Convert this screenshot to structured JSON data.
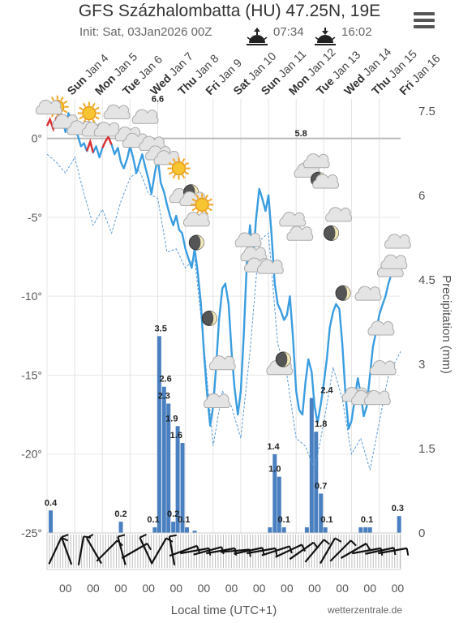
{
  "header": {
    "title": "GFS Százhalombatta (HU) 47.25N, 19E",
    "init": "Init: Sat, 03Jan2026 00Z",
    "sunrise": "07:34",
    "sunset": "16:02"
  },
  "chart_data": {
    "type": "line",
    "days": [
      {
        "dow": "Sun",
        "date": "Jan 4"
      },
      {
        "dow": "Mon",
        "date": "Jan 5"
      },
      {
        "dow": "Tue",
        "date": "Jan 6"
      },
      {
        "dow": "Wed",
        "date": "Jan 7"
      },
      {
        "dow": "Thu",
        "date": "Jan 8"
      },
      {
        "dow": "Fri",
        "date": "Jan 9"
      },
      {
        "dow": "Sat",
        "date": "Jan 10"
      },
      {
        "dow": "Sun",
        "date": "Jan 11"
      },
      {
        "dow": "Mon",
        "date": "Jan 12"
      },
      {
        "dow": "Tue",
        "date": "Jan 13"
      },
      {
        "dow": "Wed",
        "date": "Jan 14"
      },
      {
        "dow": "Thu",
        "date": "Jan 15"
      },
      {
        "dow": "Fri",
        "date": "Jan 16"
      }
    ],
    "y_left": {
      "ticks": [
        0,
        -5,
        -10,
        -15,
        -20,
        -25
      ],
      "labels": [
        "0°",
        "-5°",
        "-10°",
        "-15°",
        "-20°",
        "-25°"
      ],
      "range": [
        -25,
        2.5
      ]
    },
    "y_right": {
      "ticks": [
        0,
        1.5,
        3,
        4.5,
        6,
        7.5
      ],
      "labels": [
        "0",
        "1.5",
        "3",
        "4.5",
        "6",
        "7.5"
      ],
      "range": [
        0,
        7.5
      ],
      "label": "Precipitation (mm)"
    },
    "xlabel": "Local time (UTC+1)",
    "hour_label": "00",
    "credit": "wetterzentrale.de",
    "temperature": [
      [
        0,
        0.8
      ],
      [
        0.08,
        1.2
      ],
      [
        0.17,
        0.6
      ],
      [
        0.25,
        1.3
      ],
      [
        0.33,
        1.5
      ],
      [
        0.42,
        1.2
      ],
      [
        0.5,
        0.4
      ],
      [
        0.58,
        1.6
      ],
      [
        0.66,
        1.2
      ],
      [
        0.75,
        0.6
      ],
      [
        0.83,
        0.2
      ],
      [
        0.92,
        -0.5
      ],
      [
        1.0,
        -0.3
      ],
      [
        1.08,
        -0.8
      ],
      [
        1.17,
        -0.2
      ],
      [
        1.25,
        -0.9
      ],
      [
        1.33,
        -0.5
      ],
      [
        1.42,
        -1.2
      ],
      [
        1.5,
        -0.6
      ],
      [
        1.58,
        -0.2
      ],
      [
        1.66,
        0.1
      ],
      [
        1.75,
        -0.4
      ],
      [
        1.83,
        -1.0
      ],
      [
        1.92,
        -0.6
      ],
      [
        2.0,
        -1.5
      ],
      [
        2.08,
        -1.9
      ],
      [
        2.17,
        -1.3
      ],
      [
        2.25,
        -0.5
      ],
      [
        2.33,
        -1.2
      ],
      [
        2.42,
        -2.2
      ],
      [
        2.5,
        -1.6
      ],
      [
        2.58,
        -1.0
      ],
      [
        2.66,
        -1.8
      ],
      [
        2.75,
        -2.6
      ],
      [
        2.83,
        -3.5
      ],
      [
        2.92,
        -2.2
      ],
      [
        3.0,
        -1.2
      ],
      [
        3.08,
        -2.8
      ],
      [
        3.17,
        -3.4
      ],
      [
        3.25,
        -4.2
      ],
      [
        3.33,
        -4.9
      ],
      [
        3.42,
        -5.5
      ],
      [
        3.5,
        -4.9
      ],
      [
        3.58,
        -5.8
      ],
      [
        3.66,
        -6.0
      ],
      [
        3.75,
        -7.0
      ],
      [
        3.83,
        -7.6
      ],
      [
        3.92,
        -8.2
      ],
      [
        4.0,
        -7.0
      ],
      [
        4.08,
        -8.4
      ],
      [
        4.17,
        -10.5
      ],
      [
        4.25,
        -13.5
      ],
      [
        4.33,
        -16.0
      ],
      [
        4.42,
        -18.2
      ],
      [
        4.5,
        -17.0
      ],
      [
        4.58,
        -14.5
      ],
      [
        4.66,
        -11.5
      ],
      [
        4.75,
        -9.5
      ],
      [
        4.83,
        -9.2
      ],
      [
        4.92,
        -10.5
      ],
      [
        5.0,
        -13.5
      ],
      [
        5.08,
        -15.8
      ],
      [
        5.17,
        -17.5
      ],
      [
        5.25,
        -16.0
      ],
      [
        5.33,
        -12.5
      ],
      [
        5.42,
        -7.5
      ],
      [
        5.5,
        -5.5
      ],
      [
        5.58,
        -7.8
      ],
      [
        5.66,
        -5.2
      ],
      [
        5.75,
        -3.2
      ],
      [
        5.83,
        -3.8
      ],
      [
        5.92,
        -4.6
      ],
      [
        6.0,
        -3.6
      ],
      [
        6.08,
        -6.0
      ],
      [
        6.17,
        -9.2
      ],
      [
        6.25,
        -10.5
      ],
      [
        6.33,
        -10.9
      ],
      [
        6.42,
        -11.5
      ],
      [
        6.5,
        -11.2
      ],
      [
        6.58,
        -10.0
      ],
      [
        6.66,
        -12.5
      ],
      [
        6.75,
        -16.0
      ],
      [
        6.83,
        -17.2
      ],
      [
        6.92,
        -17.5
      ],
      [
        7.0,
        -15.5
      ],
      [
        7.08,
        -14.0
      ],
      [
        7.17,
        -14.8
      ],
      [
        7.25,
        -17.0
      ],
      [
        7.33,
        -18.0
      ],
      [
        7.42,
        -16.8
      ],
      [
        7.5,
        -15.5
      ],
      [
        7.58,
        -14.0
      ],
      [
        7.66,
        -12.0
      ],
      [
        7.75,
        -11.0
      ],
      [
        7.83,
        -10.5
      ],
      [
        7.92,
        -10.8
      ],
      [
        8.0,
        -13.0
      ],
      [
        8.08,
        -16.0
      ],
      [
        8.17,
        -18.4
      ],
      [
        8.25,
        -17.9
      ],
      [
        8.33,
        -16.6
      ],
      [
        8.42,
        -15.2
      ],
      [
        8.5,
        -16.2
      ],
      [
        8.58,
        -17.6
      ],
      [
        8.66,
        -17.0
      ],
      [
        8.75,
        -15.0
      ],
      [
        8.83,
        -13.2
      ],
      [
        8.92,
        -12.2
      ],
      [
        9.0,
        -11.2
      ],
      [
        9.08,
        -10.6
      ],
      [
        9.17,
        -10.0
      ],
      [
        9.25,
        -9.2
      ],
      [
        9.33,
        -8.6
      ],
      [
        9.42,
        -8.0
      ],
      [
        9.5,
        -8.4
      ],
      [
        9.58,
        -8.2
      ]
    ],
    "dew_point": [
      [
        0,
        -1.0
      ],
      [
        0.25,
        -1.5
      ],
      [
        0.5,
        -2.2
      ],
      [
        0.75,
        -1.2
      ],
      [
        1.0,
        -3.5
      ],
      [
        1.25,
        -5.5
      ],
      [
        1.5,
        -4.5
      ],
      [
        1.75,
        -6.0
      ],
      [
        2.0,
        -4.0
      ],
      [
        2.25,
        -2.5
      ],
      [
        2.5,
        -2.0
      ],
      [
        2.75,
        -3.5
      ],
      [
        3.0,
        -3.8
      ],
      [
        3.25,
        -7.2
      ],
      [
        3.5,
        -7.0
      ],
      [
        3.75,
        -8.2
      ],
      [
        4.0,
        -7.6
      ],
      [
        4.25,
        -13.0
      ],
      [
        4.5,
        -19.5
      ],
      [
        4.75,
        -16.0
      ],
      [
        5.0,
        -17.0
      ],
      [
        5.25,
        -19.0
      ],
      [
        5.5,
        -13.5
      ],
      [
        5.75,
        -6.5
      ],
      [
        6.0,
        -6.0
      ],
      [
        6.25,
        -13.0
      ],
      [
        6.5,
        -15.0
      ],
      [
        6.75,
        -19.0
      ],
      [
        7.0,
        -19.5
      ],
      [
        7.25,
        -21.0
      ],
      [
        7.5,
        -18.0
      ],
      [
        7.75,
        -14.5
      ],
      [
        8.0,
        -16.5
      ],
      [
        8.25,
        -20.0
      ],
      [
        8.5,
        -19.0
      ],
      [
        8.75,
        -21.0
      ],
      [
        9.0,
        -18.0
      ],
      [
        9.25,
        -15.0
      ],
      [
        9.58,
        -13.5
      ]
    ],
    "warm_segments": [
      [
        [
          0,
          0.8
        ],
        [
          0.08,
          1.2
        ],
        [
          0.17,
          0.6
        ],
        [
          0.25,
          1.3
        ],
        [
          0.33,
          1.5
        ]
      ],
      [
        [
          1.08,
          -0.8
        ],
        [
          1.17,
          -0.2
        ],
        [
          1.25,
          -0.9
        ]
      ],
      [
        [
          1.5,
          -0.6
        ],
        [
          1.58,
          -0.2
        ],
        [
          1.66,
          0.1
        ],
        [
          1.75,
          -0.4
        ]
      ]
    ],
    "precipitation": [
      [
        0.1,
        0.4
      ],
      [
        2.0,
        0.2
      ],
      [
        2.92,
        0.1
      ],
      [
        3.04,
        3.5
      ],
      [
        3.17,
        2.6
      ],
      [
        3.29,
        2.3
      ],
      [
        3.42,
        0.2
      ],
      [
        3.54,
        1.9
      ],
      [
        3.67,
        1.6
      ],
      [
        3.79,
        0.1
      ],
      [
        4.0,
        0.04
      ],
      [
        6.04,
        0.1
      ],
      [
        6.17,
        1.4
      ],
      [
        6.29,
        1.0
      ],
      [
        6.42,
        0.1
      ],
      [
        7.04,
        0.1
      ],
      [
        7.17,
        2.4
      ],
      [
        7.29,
        1.8
      ],
      [
        7.42,
        0.7
      ],
      [
        7.54,
        0.1
      ],
      [
        8.5,
        0.1
      ],
      [
        8.63,
        0.1
      ],
      [
        8.75,
        0.1
      ],
      [
        9.54,
        0.3
      ]
    ],
    "precip_labels": [
      {
        "x": 0.1,
        "v": 0.4,
        "t": "0.4"
      },
      {
        "x": 2.0,
        "v": 0.2,
        "t": "0.2"
      },
      {
        "x": 2.88,
        "v": 0.1,
        "t": "0.1"
      },
      {
        "x": 3.08,
        "v": 3.5,
        "t": "3.5"
      },
      {
        "x": 3.21,
        "v": 2.6,
        "t": "2.6"
      },
      {
        "x": 3.17,
        "v": 2.3,
        "t": "2.3"
      },
      {
        "x": 3.42,
        "v": 0.2,
        "t": "0.2"
      },
      {
        "x": 3.38,
        "v": 1.9,
        "t": "1.9"
      },
      {
        "x": 3.5,
        "v": 1.6,
        "t": "1.6"
      },
      {
        "x": 3.71,
        "v": 0.1,
        "t": "0.1"
      },
      {
        "x": 6.13,
        "v": 1.4,
        "t": "1.4"
      },
      {
        "x": 6.17,
        "v": 1.0,
        "t": "1.0"
      },
      {
        "x": 6.42,
        "v": 0.1,
        "t": "0.1"
      },
      {
        "x": 7.58,
        "v": 2.4,
        "t": "2.4"
      },
      {
        "x": 7.42,
        "v": 1.8,
        "t": "1.8"
      },
      {
        "x": 7.42,
        "v": 0.7,
        "t": "0.7"
      },
      {
        "x": 7.58,
        "v": 0.1,
        "t": "0.1"
      },
      {
        "x": 8.67,
        "v": 0.1,
        "t": "0.1"
      },
      {
        "x": 9.5,
        "v": 0.3,
        "t": "0.3"
      }
    ],
    "temp_labels": [
      {
        "x": 3.0,
        "v": 1.2,
        "t": "6.6"
      },
      {
        "x": 6.88,
        "v": -1.0,
        "t": "5.8"
      }
    ],
    "icons": [
      {
        "type": "sun",
        "x": 0.28,
        "t": 2.0
      },
      {
        "type": "sun",
        "x": 1.14,
        "t": 1.6
      },
      {
        "type": "cloud",
        "x": 0.05,
        "t": 1.8
      },
      {
        "type": "cloud",
        "x": 1.89,
        "t": 1.5
      },
      {
        "type": "cloud",
        "x": 2.66,
        "t": 1.2
      },
      {
        "type": "cloud",
        "x": 0.5,
        "t": 0.9
      },
      {
        "type": "cloud",
        "x": 0.9,
        "t": 0.5
      },
      {
        "type": "cloud",
        "x": 1.3,
        "t": 0.4
      },
      {
        "type": "cloud",
        "x": 1.63,
        "t": 0.4
      },
      {
        "type": "cloud",
        "x": 2.2,
        "t": 0.1
      },
      {
        "type": "cloud",
        "x": 2.4,
        "t": -0.3
      },
      {
        "type": "cloud",
        "x": 2.85,
        "t": -0.5
      },
      {
        "type": "cloud",
        "x": 3.02,
        "t": -1.1
      },
      {
        "type": "cloud",
        "x": 3.25,
        "t": -1.4
      },
      {
        "type": "sun",
        "x": 3.57,
        "t": -1.9
      },
      {
        "type": "cloud",
        "x": 3.67,
        "t": -3.8
      },
      {
        "type": "moon",
        "x": 3.9,
        "t": -3.4
      },
      {
        "type": "cloud",
        "x": 3.95,
        "t": -4.0
      },
      {
        "type": "sun",
        "x": 4.2,
        "t": -4.2
      },
      {
        "type": "moon",
        "x": 4.05,
        "t": -6.6
      },
      {
        "type": "cloud",
        "x": 4.05,
        "t": -5.3
      },
      {
        "type": "moon",
        "x": 4.4,
        "t": -11.4
      },
      {
        "type": "cloud",
        "x": 4.75,
        "t": -14.4
      },
      {
        "type": "cloud",
        "x": 4.6,
        "t": -16.8
      },
      {
        "type": "cloud",
        "x": 5.45,
        "t": -6.6
      },
      {
        "type": "cloud",
        "x": 5.6,
        "t": -7.5
      },
      {
        "type": "cloud",
        "x": 5.7,
        "t": -8.2
      },
      {
        "type": "cloud",
        "x": 6.05,
        "t": -8.3
      },
      {
        "type": "cloud",
        "x": 6.3,
        "t": -14.7
      },
      {
        "type": "moon",
        "x": 6.4,
        "t": -14.0
      },
      {
        "type": "cloud",
        "x": 6.65,
        "t": -5.3
      },
      {
        "type": "cloud",
        "x": 6.85,
        "t": -6.2
      },
      {
        "type": "cloud",
        "x": 7.05,
        "t": -2.2
      },
      {
        "type": "cloud",
        "x": 7.3,
        "t": -1.6
      },
      {
        "type": "moon",
        "x": 7.35,
        "t": -2.6
      },
      {
        "type": "cloud",
        "x": 7.55,
        "t": -2.9
      },
      {
        "type": "cloud",
        "x": 7.9,
        "t": -5.0
      },
      {
        "type": "moon",
        "x": 7.7,
        "t": -6.0
      },
      {
        "type": "moon",
        "x": 8.02,
        "t": -9.8
      },
      {
        "type": "cloud",
        "x": 8.35,
        "t": -16.4
      },
      {
        "type": "cloud",
        "x": 8.6,
        "t": -16.6
      },
      {
        "type": "cloud",
        "x": 8.95,
        "t": -16.6
      },
      {
        "type": "cloud",
        "x": 8.7,
        "t": -10.0
      },
      {
        "type": "cloud",
        "x": 9.05,
        "t": -12.2
      },
      {
        "type": "cloud",
        "x": 9.1,
        "t": -14.7
      },
      {
        "type": "cloud",
        "x": 9.3,
        "t": -8.5
      },
      {
        "type": "cloud",
        "x": 9.4,
        "t": -8.0
      },
      {
        "type": "cloud",
        "x": 9.5,
        "t": -6.7
      }
    ]
  }
}
